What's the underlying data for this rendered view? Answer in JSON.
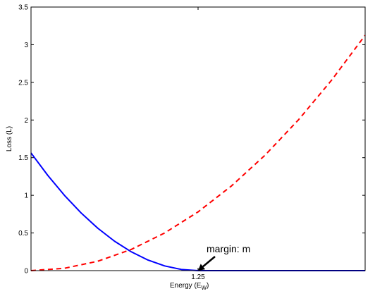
{
  "chart_data": {
    "type": "line",
    "title": "",
    "xlabel_main": "Energy (E",
    "xlabel_sub": "W",
    "xlabel_close": ")",
    "ylabel": "Loss (L)",
    "xlim": [
      0,
      2.5
    ],
    "ylim": [
      0,
      3.5
    ],
    "yticks": [
      "0",
      "0.5",
      "1",
      "1.5",
      "2",
      "2.5",
      "3",
      "3.5"
    ],
    "xticks": [
      "1.25"
    ],
    "grid": false,
    "series": [
      {
        "color": "#0000ff",
        "style": "solid",
        "x": [
          0,
          0.125,
          0.25,
          0.375,
          0.5,
          0.625,
          0.75,
          0.875,
          1.0,
          1.125,
          1.25,
          1.5,
          1.75,
          2.0,
          2.25,
          2.5
        ],
        "y": [
          1.5625,
          1.2656,
          1.0,
          0.7656,
          0.5625,
          0.3906,
          0.25,
          0.1406,
          0.0625,
          0.0156,
          0,
          0,
          0,
          0,
          0,
          0
        ]
      },
      {
        "color": "#ff0000",
        "style": "dashed",
        "x": [
          0,
          0.25,
          0.5,
          0.75,
          1.0,
          1.25,
          1.5,
          1.75,
          2.0,
          2.25,
          2.5
        ],
        "y": [
          0,
          0.0313,
          0.125,
          0.2813,
          0.5,
          0.78,
          1.125,
          1.531,
          2.0,
          2.531,
          3.125
        ]
      }
    ],
    "annotation": {
      "text": "margin: m",
      "arrow_to": [
        1.25,
        0
      ]
    }
  }
}
